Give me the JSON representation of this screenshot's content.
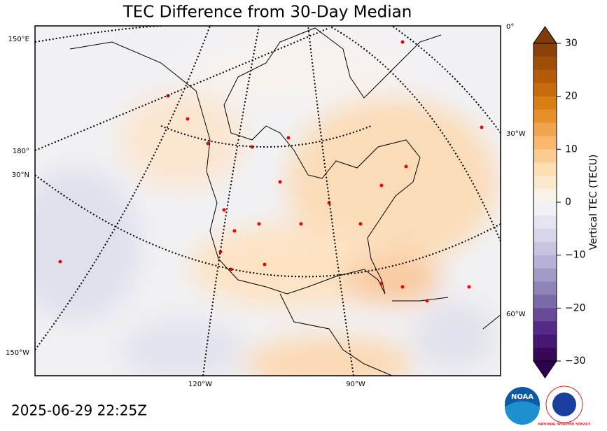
{
  "map": {
    "title": "TEC Difference from 30-Day Median",
    "graticule_labels": {
      "left": [
        "150°E",
        "180°",
        "30°N",
        "150°W"
      ],
      "bottom": [
        "120°W",
        "90°W"
      ],
      "right": [
        "0°",
        "30°W",
        "60°W"
      ]
    },
    "colorbar": {
      "label": "Vertical TEC (TECU)",
      "lim": [
        -30,
        30
      ],
      "ticks": [
        30,
        20,
        10,
        0,
        {
          "value": -10,
          "label": "−10"
        },
        {
          "value": -20,
          "label": "−20"
        },
        {
          "value": -30,
          "label": "−30"
        }
      ]
    },
    "timestamp": "2025-06-29 22:25Z",
    "logos": {
      "noaa": "NOAA",
      "nws": "NATIONAL WEATHER SERVICE"
    }
  }
}
